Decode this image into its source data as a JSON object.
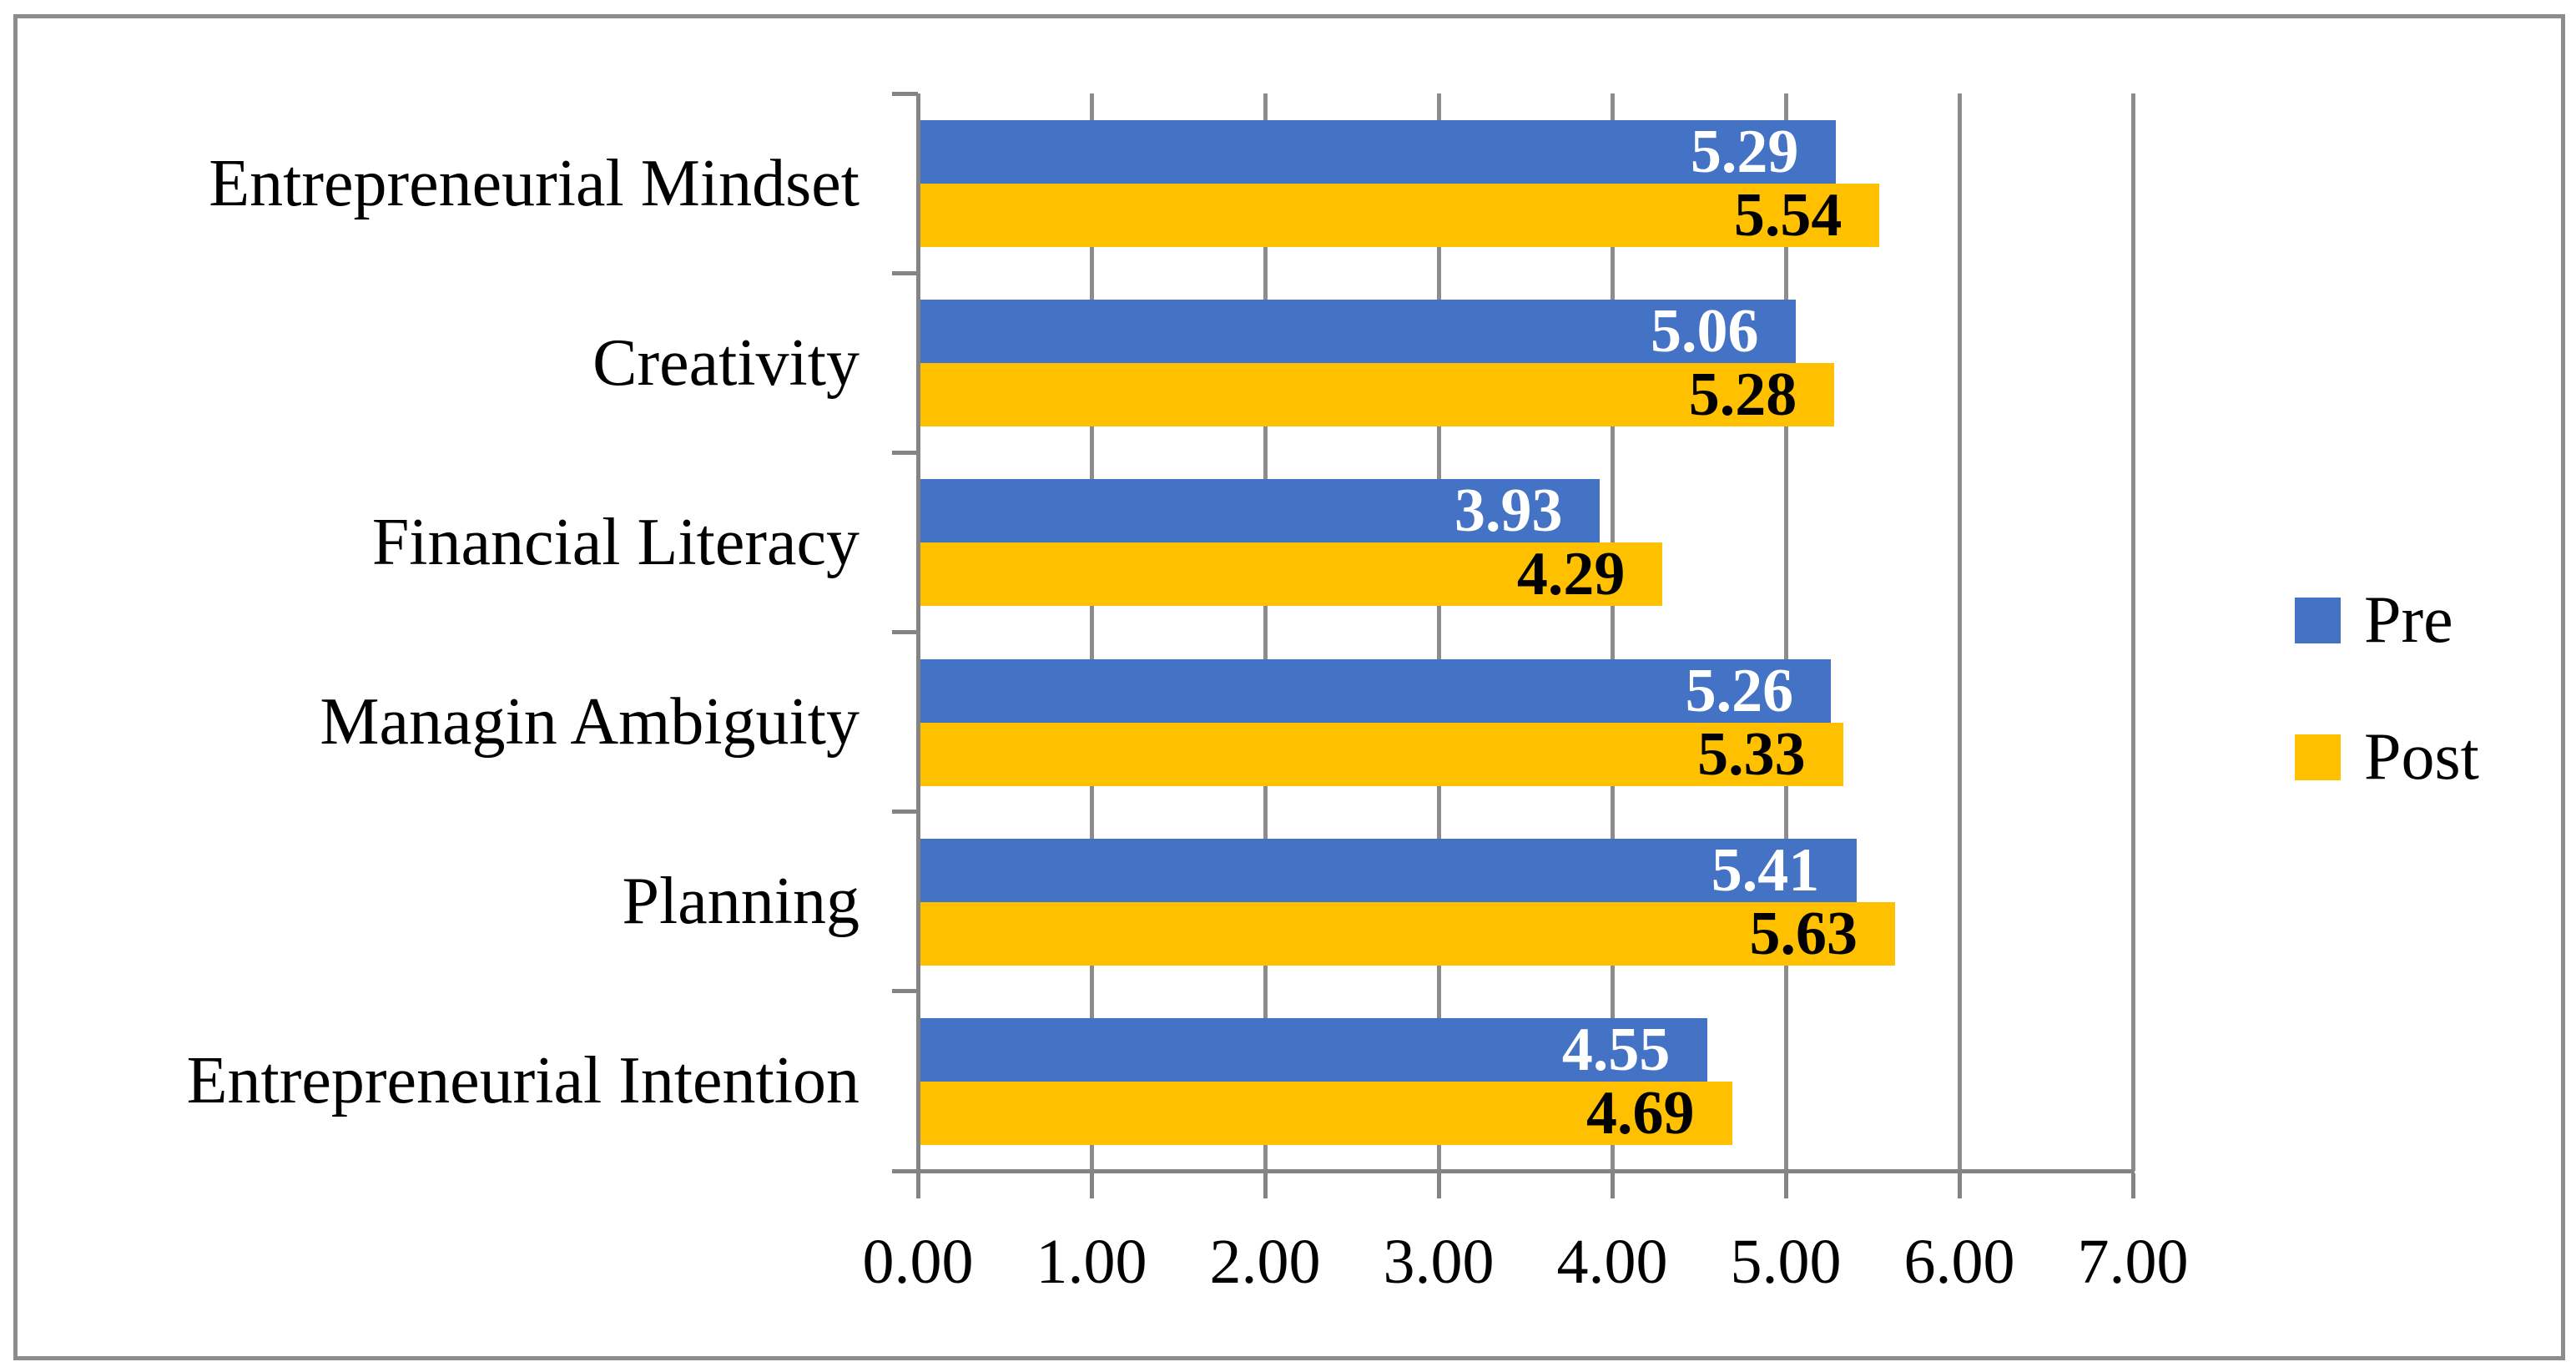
{
  "chart_data": {
    "type": "bar",
    "orientation": "horizontal",
    "title": "",
    "categories": [
      "Entrepreneurial Mindset",
      "Creativity",
      "Financial Literacy",
      "Managin Ambiguity",
      "Planning",
      "Entrepreneurial Intention"
    ],
    "series": [
      {
        "name": "Pre",
        "color": "#4472C4",
        "label_color": "#FFFFFF",
        "values": [
          5.29,
          5.06,
          3.93,
          5.26,
          5.41,
          4.55
        ]
      },
      {
        "name": "Post",
        "color": "#FFC000",
        "label_color": "#000000",
        "values": [
          5.54,
          5.28,
          4.29,
          5.33,
          5.63,
          4.69
        ]
      }
    ],
    "xlim": [
      0,
      7
    ],
    "x_tick_labels": [
      "0.00",
      "1.00",
      "2.00",
      "3.00",
      "4.00",
      "5.00",
      "6.00",
      "7.00"
    ],
    "grid": true,
    "data_labels": "inside-end, two decimals",
    "legend_position": "right",
    "legend_entries": [
      "Pre",
      "Post"
    ]
  },
  "styles": {
    "grid_color": "#8C8C8C",
    "axis_color": "#848484",
    "frame_color": "#8C8C8C",
    "background": "#FFFFFF"
  }
}
